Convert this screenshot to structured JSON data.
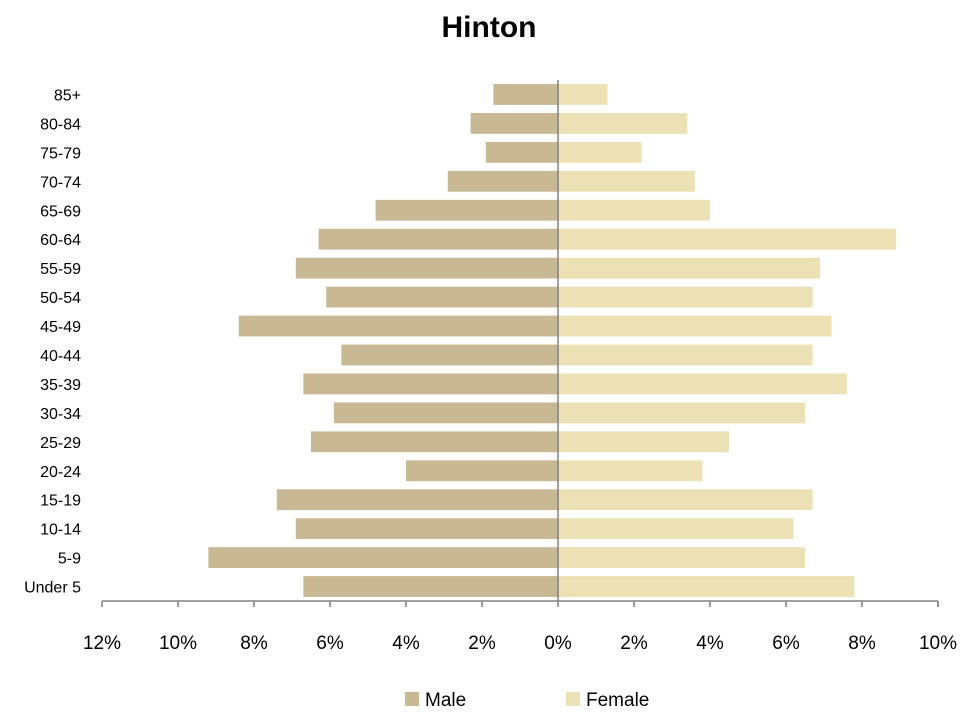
{
  "chart_data": {
    "type": "bar",
    "orientation": "horizontal",
    "layout": "population-pyramid",
    "title": "Hinton",
    "categories": [
      "Under 5",
      "5-9",
      "10-14",
      "15-19",
      "20-24",
      "25-29",
      "30-34",
      "35-39",
      "40-44",
      "45-49",
      "50-54",
      "55-59",
      "60-64",
      "65-69",
      "70-74",
      "75-79",
      "80-84",
      "85+"
    ],
    "series": [
      {
        "name": "Male",
        "color": "#c8b994",
        "direction": "left",
        "values": [
          6.7,
          9.2,
          6.9,
          7.4,
          4.0,
          6.5,
          5.9,
          6.7,
          5.7,
          8.4,
          6.1,
          6.9,
          6.3,
          4.8,
          2.9,
          1.9,
          2.3,
          1.7
        ]
      },
      {
        "name": "Female",
        "color": "#ebe1b4",
        "direction": "right",
        "values": [
          7.8,
          6.5,
          6.2,
          6.7,
          3.8,
          4.5,
          6.5,
          7.6,
          6.7,
          7.2,
          6.7,
          6.9,
          8.9,
          4.0,
          3.6,
          2.2,
          3.4,
          1.3
        ]
      }
    ],
    "x_ticks": [
      "12%",
      "10%",
      "8%",
      "6%",
      "4%",
      "2%",
      "0%",
      "2%",
      "4%",
      "6%",
      "8%",
      "10%"
    ],
    "xlim": [
      -12,
      10
    ],
    "unit": "%",
    "grid": false,
    "legend_position": "bottom"
  }
}
